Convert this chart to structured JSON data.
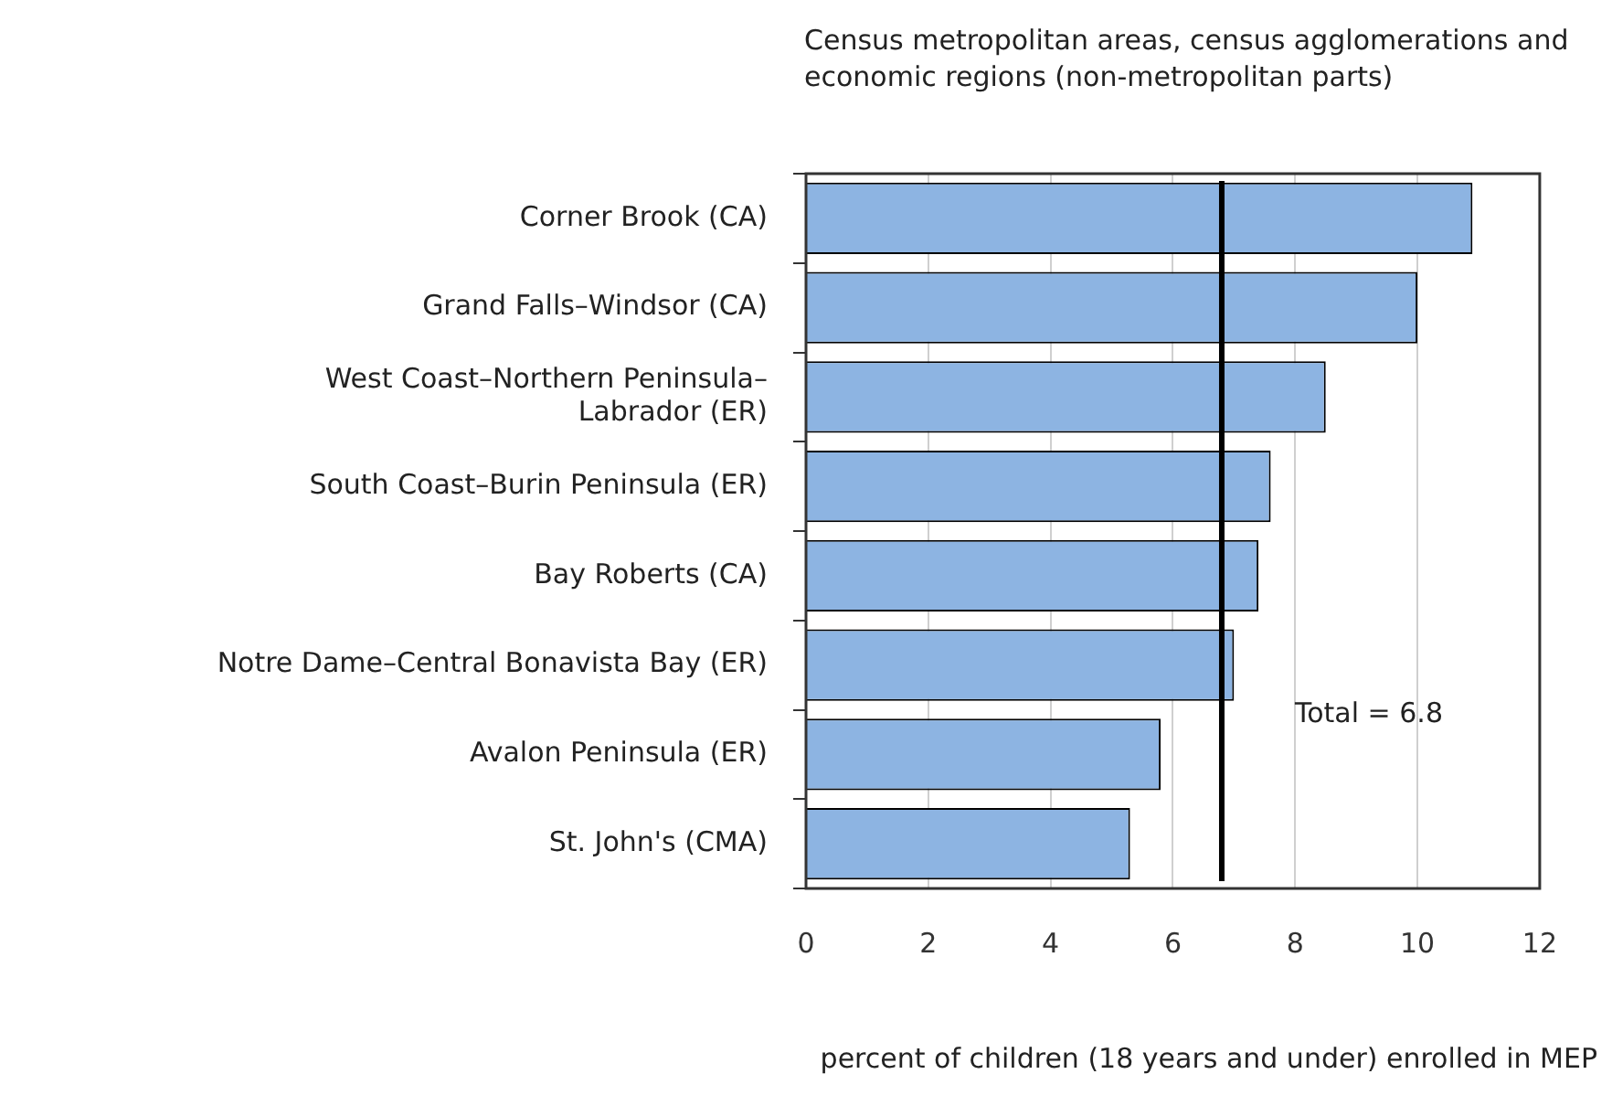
{
  "chart_data": {
    "type": "bar",
    "orientation": "horizontal",
    "title": "Census metropolitan areas, census agglomerations and economic regions (non-metropolitan parts)",
    "xlabel": "percent of children (18 years and under) enrolled in MEP",
    "categories": [
      "Corner Brook (CA)",
      "Grand Falls–Windsor (CA)",
      "West Coast–Northern Peninsula–\nLabrador (ER)",
      "South Coast–Burin Peninsula (ER)",
      "Bay Roberts (CA)",
      "Notre Dame–Central Bonavista Bay (ER)",
      "Avalon Peninsula (ER)",
      "St. John's (CMA)"
    ],
    "values": [
      10.9,
      10.0,
      8.5,
      7.6,
      7.4,
      7.0,
      5.8,
      5.3
    ],
    "color": "#8db4e2",
    "xlim": [
      0,
      12
    ],
    "xticks": [
      0,
      2,
      4,
      6,
      8,
      10,
      12
    ],
    "grid": "x",
    "legend": false,
    "ref_lines": [
      {
        "axis": "x",
        "value": 6.8,
        "label": "Total = 6.8",
        "color": "#000000"
      }
    ]
  }
}
